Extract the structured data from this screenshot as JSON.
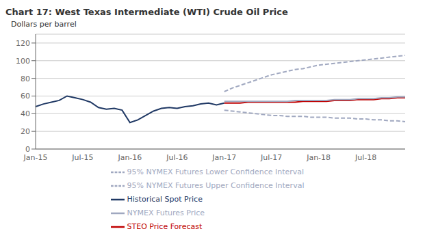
{
  "chart_data": {
    "type": "line",
    "title": "Chart 17: West Texas Intermediate (WTI) Crude Oil Price",
    "ylabel": "Dollars per barrel",
    "categories": [
      "Jan-15",
      null,
      null,
      null,
      null,
      null,
      "Jul-15",
      null,
      null,
      null,
      null,
      null,
      "Jan-16",
      null,
      null,
      null,
      null,
      null,
      "Jul-16",
      null,
      null,
      null,
      null,
      null,
      "Jan-17",
      null,
      null,
      null,
      null,
      null,
      "Jul-17",
      null,
      null,
      null,
      null,
      null,
      "Jan-18",
      null,
      null,
      null,
      null,
      null,
      "Jul-18",
      null,
      null,
      null,
      null,
      null
    ],
    "series": [
      {
        "name": "Historical Spot Price",
        "color": "#1f3864",
        "line_style": "solid",
        "values": [
          48,
          51,
          53,
          55,
          60,
          58,
          56,
          53,
          47,
          45,
          46,
          44,
          30,
          33,
          38,
          43,
          46,
          47,
          46,
          48,
          49,
          51,
          52,
          50,
          52,
          null,
          null,
          null,
          null,
          null,
          null,
          null,
          null,
          null,
          null,
          null,
          null,
          null,
          null,
          null,
          null,
          null,
          null,
          null,
          null,
          null,
          null,
          null
        ]
      },
      {
        "name": "STEO Price Forecast",
        "color": "#c00000",
        "line_style": "solid",
        "values": [
          null,
          null,
          null,
          null,
          null,
          null,
          null,
          null,
          null,
          null,
          null,
          null,
          null,
          null,
          null,
          null,
          null,
          null,
          null,
          null,
          null,
          null,
          null,
          null,
          52,
          52,
          52,
          53,
          53,
          53,
          53,
          53,
          53,
          53,
          54,
          54,
          54,
          54,
          55,
          55,
          55,
          56,
          56,
          56,
          57,
          57,
          58,
          58
        ]
      },
      {
        "name": "NYMEX Futures Price",
        "color": "#a0a8c0",
        "line_style": "solid",
        "values": [
          null,
          null,
          null,
          null,
          null,
          null,
          null,
          null,
          null,
          null,
          null,
          null,
          null,
          null,
          null,
          null,
          null,
          null,
          null,
          null,
          null,
          null,
          null,
          null,
          54,
          54,
          54,
          54,
          54,
          54,
          54,
          54,
          54,
          55,
          55,
          55,
          55,
          55,
          56,
          56,
          56,
          57,
          57,
          57,
          58,
          58,
          59,
          59
        ]
      },
      {
        "name": "95% NYMEX Futures Lower Confidence Interval",
        "color": "#a0a8c0",
        "line_style": "dashed",
        "values": [
          null,
          null,
          null,
          null,
          null,
          null,
          null,
          null,
          null,
          null,
          null,
          null,
          null,
          null,
          null,
          null,
          null,
          null,
          null,
          null,
          null,
          null,
          null,
          null,
          44,
          43,
          42,
          41,
          40,
          39,
          38,
          38,
          37,
          37,
          37,
          36,
          36,
          36,
          35,
          35,
          35,
          34,
          34,
          33,
          33,
          32,
          32,
          31
        ]
      },
      {
        "name": "95% NYMEX Futures Upper Confidence Interval",
        "color": "#a0a8c0",
        "line_style": "dashed",
        "values": [
          null,
          null,
          null,
          null,
          null,
          null,
          null,
          null,
          null,
          null,
          null,
          null,
          null,
          null,
          null,
          null,
          null,
          null,
          null,
          null,
          null,
          null,
          null,
          null,
          65,
          69,
          72,
          75,
          78,
          81,
          84,
          86,
          88,
          90,
          91,
          93,
          95,
          96,
          97,
          98,
          99,
          100,
          101,
          102,
          103,
          104,
          105,
          106
        ]
      }
    ],
    "ylim": [
      0,
      130
    ],
    "yticks": [
      0,
      20,
      40,
      60,
      80,
      100,
      120
    ],
    "grid": true,
    "legend": "bottom"
  }
}
